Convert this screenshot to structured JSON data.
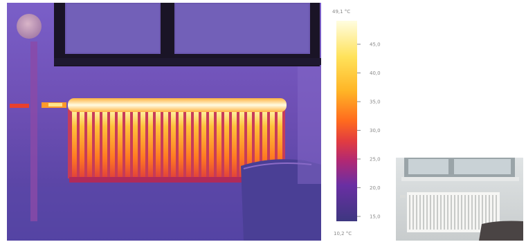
{
  "thermal_image": {
    "alt": "Thermal camera image of a radiator under a window"
  },
  "color_scale": {
    "max_label": "49,1 °C",
    "min_label": "10,2 °C",
    "tick_labels": [
      "45,0",
      "40,0",
      "35,0",
      "30,0",
      "25,0",
      "20,0",
      "15,0"
    ],
    "colors": {
      "hot": "#fffde0",
      "warm": "#ffd23a",
      "mid": "#ff6a1e",
      "cool": "#c4205a",
      "cold": "#6a2fa3",
      "coldest": "#4a3c8e"
    }
  },
  "photo_image": {
    "alt": "Visible-light photo of the same radiator"
  }
}
